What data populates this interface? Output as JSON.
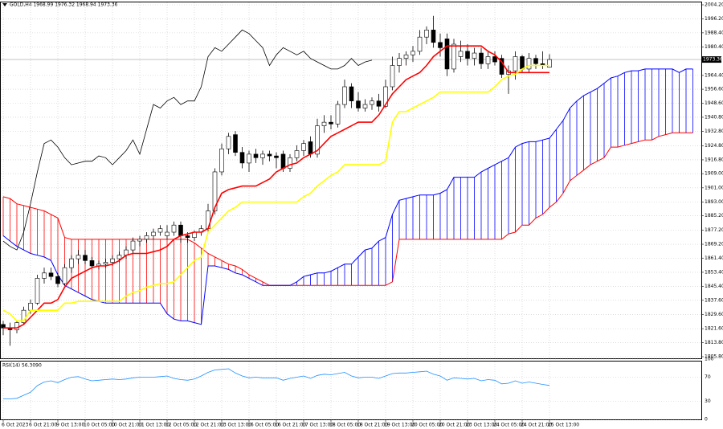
{
  "chart_data": {
    "type": "candlestick",
    "title": "GOLD,H4  1968.99 1976.32 1968.94 1973.36",
    "categories": [
      "6 Oct 2023",
      null,
      null,
      null,
      "6 Oct 21:00",
      null,
      null,
      null,
      "9 Oct 13:00",
      null,
      null,
      null,
      "10 Oct 05:00",
      null,
      null,
      null,
      "10 Oct 21:00",
      null,
      null,
      null,
      "11 Oct 13:00",
      null,
      null,
      null,
      "12 Oct 05:00",
      null,
      null,
      null,
      "12 Oct 21:00",
      null,
      null,
      null,
      "13 Oct 13:00",
      null,
      null,
      null,
      "16 Oct 05:00",
      null,
      null,
      null,
      "16 Oct 21:00",
      null,
      null,
      null,
      "17 Oct 13:00",
      null,
      null,
      null,
      "18 Oct 05:00",
      null,
      null,
      null,
      "18 Oct 21:00",
      null,
      null,
      null,
      "19 Oct 13:00",
      null,
      null,
      null,
      "20 Oct 05:00",
      null,
      null,
      null,
      "20 Oct 21:00",
      null,
      null,
      null,
      "23 Oct 13:00",
      null,
      null,
      null,
      "24 Oct 05:00",
      null,
      null,
      null,
      "24 Oct 21:00",
      null,
      null,
      null,
      "25 Oct 13:00",
      null,
      null,
      null,
      null,
      null,
      null,
      null,
      null,
      null,
      null,
      null,
      null,
      null,
      null,
      null,
      null,
      null,
      null,
      null,
      null,
      null
    ],
    "open": [
      1824,
      1822,
      1821,
      1825,
      1832,
      1836,
      1850,
      1853,
      1851,
      1847,
      1856,
      1861,
      1863,
      1860,
      1857,
      1858,
      1859,
      1861,
      1863,
      1866,
      1871,
      1872,
      1874,
      1876,
      1874,
      1876,
      1880,
      1874,
      1873,
      1876,
      1878,
      1888,
      1910,
      1923,
      1931,
      1921,
      1915,
      1920,
      1918,
      1920,
      1919,
      1920,
      1912,
      1918,
      1922,
      1927,
      1920,
      1936,
      1938,
      1937,
      1948,
      1958,
      1950,
      1946,
      1948,
      1950,
      1947,
      1958,
      1970,
      1974,
      1976,
      1978,
      1986,
      1990,
      1983,
      1985,
      1968,
      1975,
      1978,
      1974,
      1977,
      1971,
      1975,
      1974,
      1965,
      1967,
      1975,
      1968,
      1974,
      1971,
      1968.99,
      null,
      null,
      null,
      null,
      null,
      null,
      null,
      null,
      null,
      null,
      null,
      null,
      null,
      null,
      null,
      null,
      null,
      null,
      null,
      null,
      null
    ],
    "high": [
      1826,
      1825,
      1826,
      1834,
      1838,
      1852,
      1856,
      1856,
      1853,
      1858,
      1863,
      1866,
      1866,
      1862,
      1860,
      1861,
      1863,
      1865,
      1868,
      1873,
      1874,
      1876,
      1878,
      1880,
      1880,
      1882,
      1882,
      1876,
      1877,
      1880,
      1892,
      1912,
      1926,
      1932,
      1933,
      1924,
      1922,
      1923,
      1922,
      1922,
      1921,
      1922,
      1920,
      1925,
      1928,
      1930,
      1940,
      1942,
      1942,
      1950,
      1962,
      1960,
      1955,
      1951,
      1952,
      1954,
      1962,
      1975,
      1977,
      1978,
      1981,
      1990,
      1992,
      1998,
      1988,
      1988,
      1985,
      1984,
      1982,
      1980,
      1980,
      1978,
      1978,
      1976,
      1970,
      1978,
      1976,
      1977,
      1976,
      1978,
      1976.32,
      null,
      null,
      null,
      null,
      null,
      null,
      null,
      null,
      null,
      null,
      null,
      null,
      null,
      null,
      null,
      null,
      null,
      null,
      null,
      null,
      null
    ],
    "low": [
      1818,
      1812,
      1819,
      1824,
      1830,
      1835,
      1847,
      1849,
      1845,
      1846,
      1853,
      1858,
      1858,
      1856,
      1855,
      1856,
      1857,
      1859,
      1861,
      1864,
      1868,
      1870,
      1872,
      1874,
      1872,
      1874,
      1870,
      1870,
      1871,
      1874,
      1876,
      1886,
      1908,
      1920,
      1919,
      1912,
      1910,
      1915,
      1914,
      1916,
      1912,
      1910,
      1910,
      1916,
      1919,
      1918,
      1918,
      1932,
      1934,
      1935,
      1946,
      1946,
      1944,
      1944,
      1945,
      1944,
      1946,
      1956,
      1966,
      1970,
      1972,
      1976,
      1982,
      1980,
      1975,
      1964,
      1966,
      1972,
      1970,
      1970,
      1968,
      1968,
      1970,
      1963,
      1954,
      1962,
      1966,
      1966,
      1968,
      1968,
      1968.94,
      null,
      null,
      null,
      null,
      null,
      null,
      null,
      null,
      null,
      null,
      null,
      null,
      null,
      null,
      null,
      null,
      null,
      null,
      null,
      null,
      null
    ],
    "close": [
      1822,
      1821,
      1825,
      1832,
      1836,
      1850,
      1853,
      1851,
      1847,
      1856,
      1861,
      1863,
      1860,
      1857,
      1858,
      1859,
      1861,
      1863,
      1866,
      1871,
      1872,
      1874,
      1876,
      1878,
      1876,
      1880,
      1874,
      1873,
      1876,
      1878,
      1888,
      1910,
      1923,
      1930,
      1921,
      1915,
      1920,
      1918,
      1920,
      1919,
      1918,
      1912,
      1918,
      1922,
      1926,
      1920,
      1936,
      1938,
      1937,
      1948,
      1958,
      1950,
      1946,
      1948,
      1950,
      1947,
      1958,
      1970,
      1974,
      1976,
      1978,
      1986,
      1990,
      1983,
      1980,
      1968,
      1982,
      1978,
      1974,
      1977,
      1971,
      1975,
      1972,
      1965,
      1967,
      1975,
      1968,
      1974,
      1971,
      1970,
      1973.36,
      null,
      null,
      null,
      null,
      null,
      null,
      null,
      null,
      null,
      null,
      null,
      null,
      null,
      null,
      null,
      null,
      null,
      null,
      null,
      null,
      null
    ],
    "up_color": "#ffffff",
    "down_color": "#000000",
    "series": [
      {
        "color": "#ff0000",
        "values": [
          1822,
          1822,
          1822,
          1824,
          1828,
          1832,
          1836,
          1836,
          1838,
          1845,
          1850,
          1852,
          1854,
          1856,
          1857,
          1857,
          1858,
          1860,
          1863,
          1864,
          1864,
          1864,
          1865,
          1866,
          1868,
          1872,
          1874,
          1875,
          1876,
          1876,
          1878,
          1890,
          1898,
          1900,
          1901,
          1902,
          1902,
          1902,
          1904,
          1906,
          1910,
          1912,
          1914,
          1915,
          1918,
          1920,
          1922,
          1926,
          1930,
          1932,
          1934,
          1936,
          1938,
          1938,
          1938,
          1942,
          1948,
          1954,
          1958,
          1962,
          1964,
          1966,
          1970,
          1975,
          1978,
          1981,
          1981,
          1981,
          1981,
          1981,
          1981,
          1978,
          1976,
          1972,
          1966,
          1966,
          1966,
          1966,
          1966,
          1966,
          1966,
          null,
          null,
          null,
          null,
          null,
          null,
          null,
          null,
          null,
          null,
          null,
          null,
          null,
          null,
          null,
          null,
          null,
          null,
          null,
          null,
          null
        ]
      },
      {
        "color": "#ffff00",
        "values": [
          1832,
          1830,
          1826,
          1826,
          1832,
          1832,
          1832,
          1832,
          1832,
          1836,
          1836,
          1837,
          1837,
          1837,
          1837,
          1837,
          1837,
          1837,
          1840,
          1842,
          1843,
          1845,
          1846,
          1847,
          1847,
          1848,
          1852,
          1856,
          1860,
          1862,
          1876,
          1880,
          1884,
          1888,
          1890,
          1893,
          1893,
          1893,
          1893,
          1893,
          1893,
          1893,
          1893,
          1893,
          1896,
          1898,
          1902,
          1905,
          1908,
          1910,
          1914,
          1914,
          1914,
          1914,
          1914,
          1914,
          1916,
          1938,
          1944,
          1944,
          1946,
          1948,
          1950,
          1952,
          1955,
          1955,
          1955,
          1955,
          1955,
          1955,
          1955,
          1955,
          1958,
          1962,
          1964,
          1965,
          1968,
          1970,
          1970,
          1970,
          1970,
          null,
          null,
          null,
          null,
          null,
          null,
          null,
          null,
          null,
          null,
          null,
          null,
          null,
          null,
          null,
          null,
          null,
          null,
          null,
          null,
          null
        ]
      },
      {
        "color": "#000000",
        "values": [
          1871,
          1868,
          1866,
          1876,
          1892,
          1910,
          1926,
          1928,
          1924,
          1918,
          1914,
          1915,
          1916,
          1916,
          1919,
          1918,
          1914,
          1918,
          1922,
          1928,
          1920,
          1934,
          1948,
          1946,
          1950,
          1952,
          1948,
          1950,
          1950,
          1958,
          1975,
          1980,
          1978,
          1982,
          1986,
          1990,
          1988,
          1984,
          1980,
          1970,
          1976,
          1980,
          1978,
          1976,
          1978,
          1974,
          1972,
          1970,
          1968,
          1968,
          1970,
          1974,
          1970,
          1972,
          1973,
          null,
          null,
          null,
          null,
          null,
          null,
          null,
          null,
          null,
          null,
          null,
          null,
          null,
          null,
          null,
          null,
          null,
          null,
          null,
          null,
          null,
          null,
          null,
          null,
          null,
          null,
          null,
          null,
          null,
          null,
          null,
          null,
          null,
          null,
          null,
          null,
          null,
          null,
          null,
          null,
          null,
          null,
          null,
          null,
          null,
          null,
          null
        ]
      }
    ],
    "cloud": [
      {
        "color": "#ff0000",
        "values": [
          1896,
          1895,
          1892,
          1891,
          1890,
          1889,
          1888,
          1886,
          1884,
          1873,
          1872,
          1872,
          1872,
          1872,
          1872,
          1872,
          1872,
          1872,
          1872,
          1872,
          1872,
          1872,
          1872,
          1872,
          1872,
          1872,
          1872,
          1872,
          1870,
          1867,
          1864,
          1862,
          1860,
          1858,
          1857,
          1855,
          1852,
          1850,
          1848,
          1846,
          1846,
          1846,
          1846,
          1846,
          1846,
          1846,
          1846,
          1846,
          1846,
          1846,
          1846,
          1846,
          1846,
          1846,
          1846,
          1846,
          1846,
          1848,
          1872,
          1872,
          1872,
          1872,
          1872,
          1872,
          1872,
          1872,
          1872,
          1872,
          1872,
          1872,
          1872,
          1872,
          1872,
          1872,
          1875,
          1876,
          1880,
          1880,
          1884,
          1886,
          1890,
          1893,
          1898,
          1905,
          1908,
          1911,
          1914,
          1916,
          1918,
          1924,
          1924,
          1925,
          1926,
          1927,
          1928,
          1928,
          1930,
          1931,
          1932,
          1932,
          1932,
          1932
        ]
      },
      {
        "color": "#0000ff",
        "values": [
          1874,
          1871,
          1868,
          1866,
          1864,
          1863,
          1862,
          1860,
          1852,
          1846,
          1844,
          1842,
          1840,
          1838,
          1837,
          1836,
          1836,
          1836,
          1836,
          1836,
          1836,
          1836,
          1836,
          1836,
          1830,
          1827,
          1826,
          1826,
          1825,
          1824,
          1857,
          1857,
          1856,
          1855,
          1853,
          1852,
          1850,
          1848,
          1846,
          1846,
          1846,
          1846,
          1846,
          1848,
          1851,
          1852,
          1853,
          1853,
          1854,
          1856,
          1858,
          1858,
          1862,
          1866,
          1867,
          1871,
          1873,
          1886,
          1894,
          1895,
          1896,
          1897,
          1897,
          1897,
          1898,
          1900,
          1907,
          1907,
          1907,
          1907,
          1910,
          1912,
          1914,
          1916,
          1918,
          1924,
          1926,
          1927,
          1927,
          1928,
          1929,
          1934,
          1939,
          1946,
          1950,
          1953,
          1955,
          1957,
          1960,
          1963,
          1964,
          1966,
          1967,
          1967,
          1968,
          1968,
          1968,
          1968,
          1968,
          1966,
          1968,
          1968
        ]
      }
    ],
    "ylim": [
      1805.8,
      2004.2
    ],
    "yticks": [
      {
        "value": 2004.2,
        "label": "2004.20"
      },
      {
        "value": 1996.2,
        "label": "1996.20"
      },
      {
        "value": 1988.4,
        "label": "1988.40"
      },
      {
        "value": 1980.4,
        "label": "1980.40"
      },
      {
        "value": 1964.4,
        "label": "1964.40"
      },
      {
        "value": 1956.6,
        "label": "1956.60"
      },
      {
        "value": 1948.6,
        "label": "1948.60"
      },
      {
        "value": 1940.8,
        "label": "1940.80"
      },
      {
        "value": 1932.8,
        "label": "1932.80"
      },
      {
        "value": 1924.8,
        "label": "1924.80"
      },
      {
        "value": 1916.8,
        "label": "1916.80"
      },
      {
        "value": 1909,
        "label": "1909.00"
      },
      {
        "value": 1901,
        "label": "1901.00"
      },
      {
        "value": 1893,
        "label": "1893.00"
      },
      {
        "value": 1885.2,
        "label": "1885.20"
      },
      {
        "value": 1877.2,
        "label": "1877.20"
      },
      {
        "value": 1869.2,
        "label": "1869.20"
      },
      {
        "value": 1861.4,
        "label": "1861.40"
      },
      {
        "value": 1853.4,
        "label": "1853.40"
      },
      {
        "value": 1845.4,
        "label": "1845.40"
      },
      {
        "value": 1837.6,
        "label": "1837.60"
      },
      {
        "value": 1829.6,
        "label": "1829.60"
      },
      {
        "value": 1821.6,
        "label": "1821.60"
      },
      {
        "value": 1813.8,
        "label": "1813.80"
      },
      {
        "value": 1805.8,
        "label": "1805.80"
      }
    ],
    "last_price": {
      "value": 1973.36,
      "label": "1973.36"
    },
    "grid": true,
    "rsi": {
      "title": "RSI(14) 56.3090",
      "color": "#1e90ff",
      "ylim": [
        0,
        100
      ],
      "yticks": [
        100,
        70,
        30,
        0
      ],
      "values": [
        34,
        34,
        35,
        40,
        45,
        56,
        62,
        64,
        61,
        66,
        70,
        71,
        67,
        64,
        65,
        66,
        67,
        66,
        67,
        69,
        70,
        70,
        70,
        71,
        72,
        68,
        66,
        65,
        67,
        72,
        78,
        82,
        83,
        84,
        77,
        72,
        69,
        70,
        69,
        69,
        69,
        65,
        68,
        70,
        72,
        68,
        73,
        75,
        74,
        76,
        78,
        72,
        69,
        70,
        70,
        68,
        72,
        76,
        77,
        77,
        78,
        79,
        80,
        75,
        72,
        65,
        69,
        68,
        67,
        68,
        64,
        66,
        65,
        59,
        60,
        64,
        60,
        62,
        60,
        58,
        56.309,
        null,
        null,
        null,
        null,
        null,
        null,
        null,
        null,
        null,
        null,
        null,
        null,
        null,
        null,
        null,
        null,
        null,
        null,
        null,
        null,
        null
      ]
    }
  }
}
